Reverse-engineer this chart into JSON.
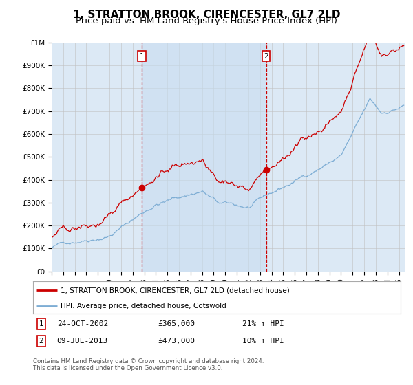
{
  "title": "1, STRATTON BROOK, CIRENCESTER, GL7 2LD",
  "subtitle": "Price paid vs. HM Land Registry's House Price Index (HPI)",
  "title_fontsize": 11,
  "subtitle_fontsize": 9.5,
  "plot_bg": "#dce9f5",
  "shade_color": "#c8ddf0",
  "red_line_color": "#cc0000",
  "blue_line_color": "#7dadd4",
  "marker_box_color": "#cc0000",
  "sale1_year": 2002.81,
  "sale1_price": 365000,
  "sale2_year": 2013.52,
  "sale2_price": 473000,
  "legend_label_red": "1, STRATTON BROOK, CIRENCESTER, GL7 2LD (detached house)",
  "legend_label_blue": "HPI: Average price, detached house, Cotswold",
  "footnote": "Contains HM Land Registry data © Crown copyright and database right 2024.\nThis data is licensed under the Open Government Licence v3.0.",
  "ylim": [
    0,
    1000000
  ],
  "xlim_start": 1995.0,
  "xlim_end": 2025.5,
  "ytick_vals": [
    0,
    100000,
    200000,
    300000,
    400000,
    500000,
    600000,
    700000,
    800000,
    900000,
    1000000
  ],
  "ytick_labels": [
    "£0",
    "£100K",
    "£200K",
    "£300K",
    "£400K",
    "£500K",
    "£600K",
    "£700K",
    "£800K",
    "£900K",
    "£1M"
  ]
}
